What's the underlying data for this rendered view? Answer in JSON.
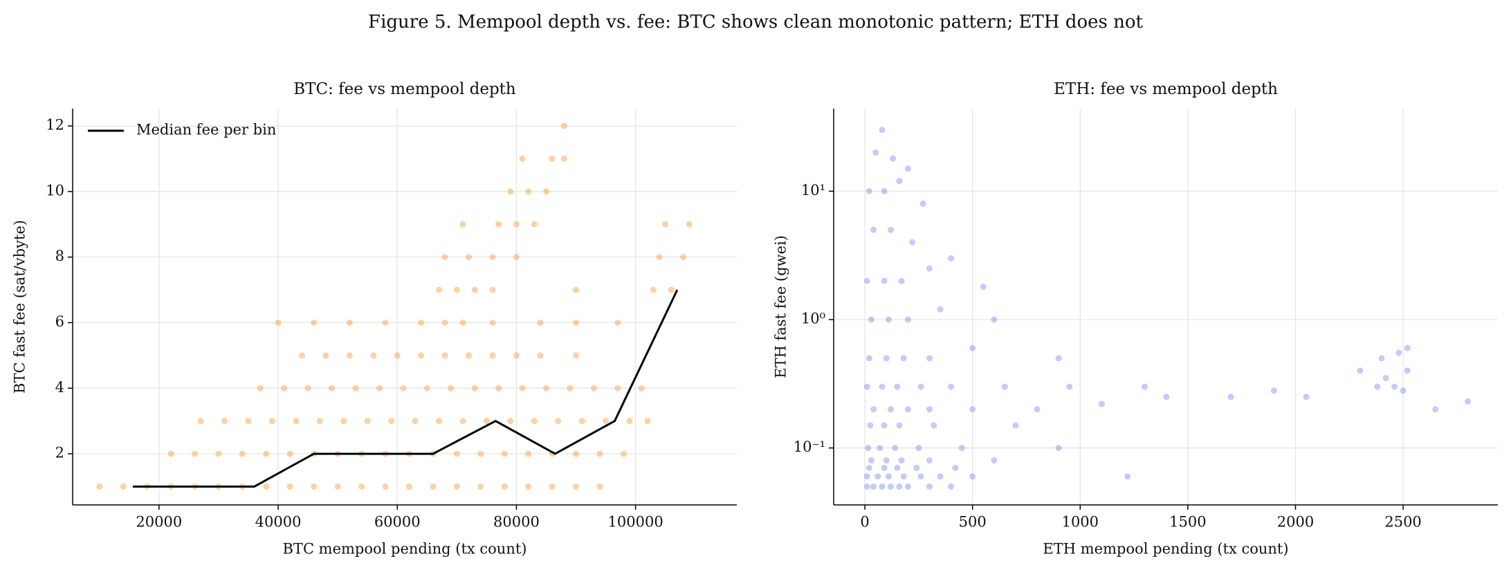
{
  "title": "Figure 5. Mempool depth vs. fee: BTC shows clean monotonic pattern; ETH does not",
  "chart_data": [
    {
      "type": "scatter",
      "title": "BTC: fee vs mempool depth",
      "x_label": "BTC mempool pending (tx count)",
      "y_label": "BTC fast fee (sat/vbyte)",
      "xlim": [
        5500,
        117000
      ],
      "ylim": [
        0.44,
        12.53
      ],
      "xticks": [
        20000,
        40000,
        60000,
        80000,
        100000
      ],
      "yticks": [
        2,
        4,
        6,
        8,
        10,
        12
      ],
      "grid": true,
      "legend": "upper left",
      "series": [
        {
          "color": "#f28e1c",
          "x": [
            10000,
            14000,
            18000,
            22000,
            26000,
            30000,
            34000,
            38000,
            42000,
            46000,
            50000,
            54000,
            58000,
            62000,
            66000,
            70000,
            74000,
            78000,
            82000,
            86000,
            90000,
            94000,
            22000,
            26000,
            30000,
            34000,
            38000,
            42000,
            46000,
            50000,
            54000,
            58000,
            62000,
            66000,
            70000,
            74000,
            78000,
            82000,
            86000,
            90000,
            94000,
            98000,
            27000,
            31000,
            35000,
            39000,
            43000,
            47000,
            51000,
            55000,
            59000,
            63000,
            67000,
            71000,
            75000,
            79000,
            83000,
            87000,
            91000,
            95000,
            99000,
            102000,
            37000,
            41000,
            45000,
            49000,
            53000,
            57000,
            61000,
            65000,
            69000,
            73000,
            77000,
            81000,
            85000,
            89000,
            93000,
            97000,
            101000,
            44000,
            48000,
            52000,
            56000,
            60000,
            64000,
            68000,
            72000,
            76000,
            80000,
            84000,
            90000,
            40000,
            46000,
            52000,
            58000,
            64000,
            68000,
            71000,
            76000,
            84000,
            90000,
            97000,
            67000,
            70000,
            73000,
            76000,
            90000,
            103000,
            106000,
            68000,
            72000,
            76000,
            80000,
            104000,
            108000,
            71000,
            77000,
            80000,
            83000,
            105000,
            109000,
            79000,
            82000,
            85000,
            81000,
            86000,
            88000,
            88000
          ],
          "values": [
            1,
            1,
            1,
            1,
            1,
            1,
            1,
            1,
            1,
            1,
            1,
            1,
            1,
            1,
            1,
            1,
            1,
            1,
            1,
            1,
            1,
            1,
            2,
            2,
            2,
            2,
            2,
            2,
            2,
            2,
            2,
            2,
            2,
            2,
            2,
            2,
            2,
            2,
            2,
            2,
            2,
            2,
            3,
            3,
            3,
            3,
            3,
            3,
            3,
            3,
            3,
            3,
            3,
            3,
            3,
            3,
            3,
            3,
            3,
            3,
            3,
            3,
            4,
            4,
            4,
            4,
            4,
            4,
            4,
            4,
            4,
            4,
            4,
            4,
            4,
            4,
            4,
            4,
            4,
            5,
            5,
            5,
            5,
            5,
            5,
            5,
            5,
            5,
            5,
            5,
            5,
            6,
            6,
            6,
            6,
            6,
            6,
            6,
            6,
            6,
            6,
            6,
            7,
            7,
            7,
            7,
            7,
            7,
            7,
            8,
            8,
            8,
            8,
            8,
            8,
            9,
            9,
            9,
            9,
            9,
            9,
            10,
            10,
            10,
            11,
            11,
            11,
            12
          ]
        },
        {
          "name": "Median fee per bin",
          "type": "line",
          "color": "#000000",
          "x": [
            15600,
            26000,
            36000,
            46000,
            56000,
            66000,
            76500,
            86500,
            96500,
            107000
          ],
          "values": [
            1,
            1,
            1,
            2,
            2,
            2,
            3,
            2,
            3,
            7
          ]
        }
      ]
    },
    {
      "type": "scatter",
      "title": "ETH: fee vs mempool depth",
      "x_label": "ETH mempool pending (tx count)",
      "y_label": "ETH fast fee (gwei)",
      "xlim": [
        -145,
        2940
      ],
      "ylim": [
        0.036,
        44
      ],
      "yscale": "log",
      "xticks": [
        0,
        500,
        1000,
        1500,
        2000,
        2500
      ],
      "yticks": [
        {
          "value": 0.1,
          "label": "10⁻¹"
        },
        {
          "value": 1,
          "label": "10⁰"
        },
        {
          "value": 10,
          "label": "10¹"
        }
      ],
      "grid": true,
      "series": [
        {
          "color": "#6a7fe6",
          "x": [
            10,
            40,
            80,
            120,
            160,
            200,
            300,
            400,
            10,
            60,
            110,
            180,
            260,
            350,
            500,
            1220,
            20,
            90,
            150,
            240,
            420,
            30,
            100,
            170,
            300,
            600,
            15,
            70,
            140,
            250,
            450,
            900,
            25,
            90,
            160,
            320,
            700,
            40,
            120,
            200,
            300,
            500,
            800,
            1100,
            1400,
            1700,
            10,
            80,
            150,
            260,
            400,
            650,
            950,
            1300,
            1900,
            2050,
            2380,
            2420,
            2460,
            2500,
            2520,
            2400,
            2480,
            2520,
            2300,
            2650,
            2800,
            20,
            100,
            180,
            300,
            500,
            900,
            30,
            110,
            200,
            350,
            600,
            10,
            90,
            170,
            300,
            550,
            40,
            120,
            220,
            400,
            20,
            90,
            160,
            270,
            50,
            130,
            80,
            200
          ],
          "values": [
            0.05,
            0.05,
            0.05,
            0.05,
            0.05,
            0.05,
            0.05,
            0.05,
            0.06,
            0.06,
            0.06,
            0.06,
            0.06,
            0.06,
            0.06,
            0.06,
            0.07,
            0.07,
            0.07,
            0.07,
            0.07,
            0.08,
            0.08,
            0.08,
            0.08,
            0.08,
            0.1,
            0.1,
            0.1,
            0.1,
            0.1,
            0.1,
            0.15,
            0.15,
            0.15,
            0.15,
            0.15,
            0.2,
            0.2,
            0.2,
            0.2,
            0.2,
            0.2,
            0.22,
            0.25,
            0.25,
            0.3,
            0.3,
            0.3,
            0.3,
            0.3,
            0.3,
            0.3,
            0.3,
            0.28,
            0.25,
            0.3,
            0.35,
            0.3,
            0.28,
            0.4,
            0.5,
            0.55,
            0.6,
            0.4,
            0.2,
            0.23,
            0.5,
            0.5,
            0.5,
            0.5,
            0.6,
            0.5,
            1,
            1,
            1,
            1.2,
            1,
            2,
            2,
            2,
            2.5,
            1.8,
            5,
            5,
            4,
            3,
            10,
            10,
            12,
            8,
            20,
            18,
            30,
            15
          ]
        }
      ]
    }
  ]
}
